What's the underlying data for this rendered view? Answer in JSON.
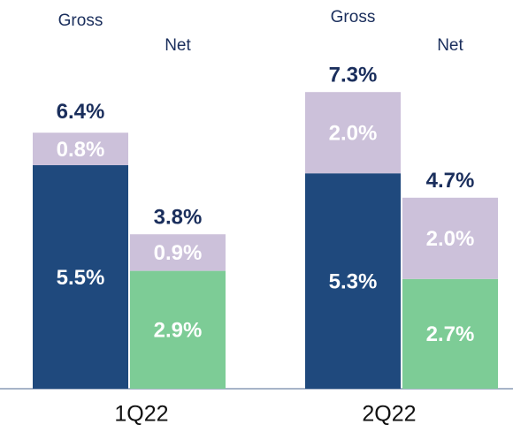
{
  "chart_data": {
    "type": "stacked_bar",
    "groups": [
      {
        "category": "1Q22",
        "bars": [
          {
            "label": "Gross",
            "values": [
              5.5,
              0.8
            ],
            "value_labels": [
              "5.5%",
              "0.8%"
            ],
            "colors": [
              "#1f497d",
              "#ccc1da"
            ],
            "total": 6.4,
            "total_label": "6.4%"
          },
          {
            "label": "Net",
            "values": [
              2.9,
              0.9
            ],
            "value_labels": [
              "2.9%",
              "0.9%"
            ],
            "colors": [
              "#7dcc96",
              "#ccc1da"
            ],
            "total": 3.8,
            "total_label": "3.8%"
          }
        ]
      },
      {
        "category": "2Q22",
        "bars": [
          {
            "label": "Gross",
            "values": [
              5.3,
              2.0
            ],
            "value_labels": [
              "5.3%",
              "2.0%"
            ],
            "colors": [
              "#1f497d",
              "#ccc1da"
            ],
            "total": 7.3,
            "total_label": "7.3%"
          },
          {
            "label": "Net",
            "values": [
              2.7,
              2.0
            ],
            "value_labels": [
              "2.7%",
              "2.0%"
            ],
            "colors": [
              "#7dcc96",
              "#ccc1da"
            ],
            "total": 4.7,
            "total_label": "4.7%"
          }
        ]
      }
    ]
  }
}
